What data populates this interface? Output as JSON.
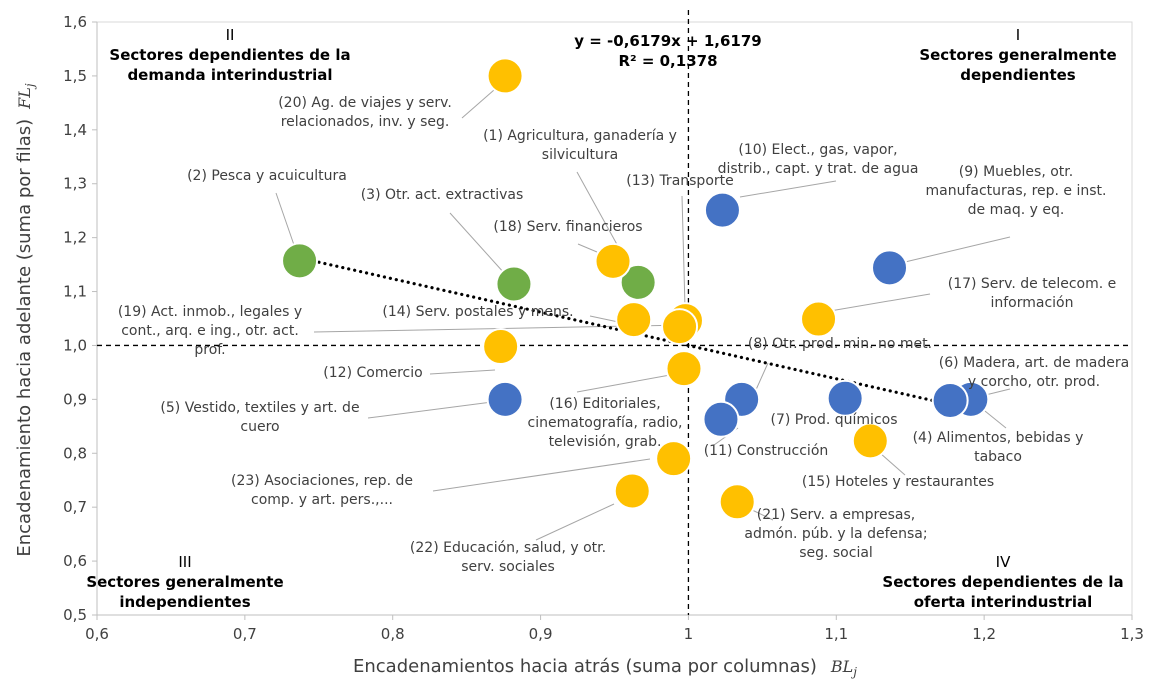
{
  "chart_data": {
    "type": "scatter",
    "xlabel": "Encadenamientos hacia atrás (suma por columnas)",
    "xlabel_symbol": "BL",
    "xlabel_symbol_sub": "j",
    "ylabel": "Encadenamiento hacia adelante (suma por filas)",
    "ylabel_symbol": "FL",
    "ylabel_symbol_sub": "j",
    "xlim": [
      0.6,
      1.3
    ],
    "ylim": [
      0.5,
      1.6
    ],
    "x_ticks": [
      "0,6",
      "0,7",
      "0,8",
      "0,9",
      "1",
      "1,1",
      "1,2",
      "1,3"
    ],
    "y_ticks": [
      "0,5",
      "0,6",
      "0,7",
      "0,8",
      "0,9",
      "1,0",
      "1,1",
      "1,2",
      "1,3",
      "1,4",
      "1,5",
      "1,6"
    ],
    "reference_lines": {
      "x": 1.0,
      "y": 1.0
    },
    "colors": {
      "green": "#70ad47",
      "blue": "#4472c4",
      "yellow": "#ffc000"
    },
    "trendline": {
      "equation": "y = -0,6179x + 1,6179",
      "r2": "R² = 0,1378",
      "slope": -0.6179,
      "intercept": 1.6179,
      "x_range": [
        0.738,
        1.19
      ]
    },
    "quadrants": [
      {
        "id": "q1",
        "numeral": "I",
        "lines": [
          "Sectores generalmente",
          "dependientes"
        ]
      },
      {
        "id": "q2",
        "numeral": "II",
        "lines": [
          "Sectores  dependientes  de la",
          "demanda interindustrial"
        ]
      },
      {
        "id": "q3",
        "numeral": "III",
        "lines": [
          "Sectores generalmente",
          "independientes"
        ]
      },
      {
        "id": "q4",
        "numeral": "IV",
        "lines": [
          "Sectores  dependientes de la",
          "oferta interindustrial"
        ]
      }
    ],
    "points": [
      {
        "id": "p20",
        "x": 0.876,
        "y": 1.5,
        "color": "yellow",
        "label": [
          "(20) Ag. de viajes y serv.",
          "relacionados, inv. y seg."
        ]
      },
      {
        "id": "p1",
        "x": 0.966,
        "y": 1.117,
        "color": "green",
        "label": [
          "(1) Agricultura, ganadería y",
          "silvicultura"
        ]
      },
      {
        "id": "p2",
        "x": 0.737,
        "y": 1.157,
        "color": "green",
        "label": [
          "(2) Pesca y acuicultura"
        ]
      },
      {
        "id": "p3",
        "x": 0.882,
        "y": 1.114,
        "color": "green",
        "label": [
          "(3) Otr. act. extractivas"
        ]
      },
      {
        "id": "p18",
        "x": 0.949,
        "y": 1.156,
        "color": "yellow",
        "label": [
          "(18) Serv. financieros"
        ]
      },
      {
        "id": "p13",
        "x": 0.998,
        "y": 1.046,
        "color": "yellow",
        "label": [
          "(13) Transporte"
        ]
      },
      {
        "id": "p10",
        "x": 1.023,
        "y": 1.251,
        "color": "blue",
        "label": [
          "(10) Elect., gas, vapor,",
          "distrib., capt. y trat. de agua"
        ]
      },
      {
        "id": "p9",
        "x": 1.136,
        "y": 1.144,
        "color": "blue",
        "label": [
          "(9) Muebles, otr.",
          "manufacturas,  rep. e inst.",
          "de maq. y eq."
        ]
      },
      {
        "id": "p17",
        "x": 1.088,
        "y": 1.049,
        "color": "yellow",
        "label": [
          "(17) Serv. de telecom. e",
          "información"
        ]
      },
      {
        "id": "p14",
        "x": 0.963,
        "y": 1.048,
        "color": "yellow",
        "label": [
          "(14) Serv. postales y mens."
        ]
      },
      {
        "id": "p19",
        "x": 0.994,
        "y": 1.035,
        "color": "yellow",
        "label": [
          "(19) Act. inmob., legales y",
          "cont., arq. e ing., otr. act.",
          "prof."
        ]
      },
      {
        "id": "p12",
        "x": 0.873,
        "y": 0.998,
        "color": "yellow",
        "label": [
          "(12) Comercio"
        ]
      },
      {
        "id": "p16",
        "x": 0.997,
        "y": 0.957,
        "color": "yellow",
        "label": [
          "(16) Editoriales,",
          "cinematografía, radio,",
          "televisión, grab."
        ]
      },
      {
        "id": "p8",
        "x": 1.036,
        "y": 0.9,
        "color": "blue",
        "label": [
          "(8) Otr. prod. min. no met."
        ]
      },
      {
        "id": "p6",
        "x": 1.191,
        "y": 0.9,
        "color": "blue",
        "label": [
          "(6) Madera, art. de madera",
          "y corcho, otr. prod."
        ]
      },
      {
        "id": "p4",
        "x": 1.177,
        "y": 0.898,
        "color": "blue",
        "label": [
          "(4) Alimentos, bebidas y",
          "tabaco"
        ]
      },
      {
        "id": "p7",
        "x": 1.106,
        "y": 0.902,
        "color": "blue",
        "label": [
          "(7) Prod. químicos"
        ]
      },
      {
        "id": "p5",
        "x": 0.876,
        "y": 0.9,
        "color": "blue",
        "label": [
          "(5) Vestido, textiles y art. de",
          "cuero"
        ]
      },
      {
        "id": "p11",
        "x": 1.022,
        "y": 0.863,
        "color": "blue",
        "label": [
          "(11) Construcción"
        ]
      },
      {
        "id": "p15",
        "x": 1.123,
        "y": 0.823,
        "color": "yellow",
        "label": [
          "(15) Hoteles y restaurantes"
        ]
      },
      {
        "id": "p23",
        "x": 0.99,
        "y": 0.79,
        "color": "yellow",
        "label": [
          "(23) Asociaciones, rep. de",
          "comp. y art. pers.,..."
        ]
      },
      {
        "id": "p22",
        "x": 0.962,
        "y": 0.73,
        "color": "yellow",
        "label": [
          "(22) Educación, salud, y otr.",
          "serv. sociales"
        ]
      },
      {
        "id": "p21",
        "x": 1.033,
        "y": 0.71,
        "color": "yellow",
        "label": [
          "(21) Serv. a empresas,",
          "admón. púb. y la defensa;",
          "seg. social"
        ]
      }
    ]
  }
}
